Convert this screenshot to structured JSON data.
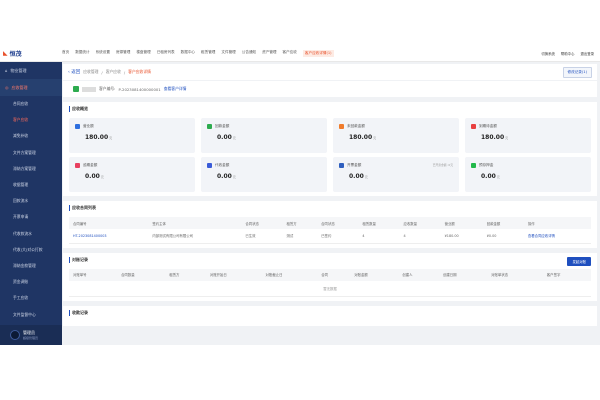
{
  "brand": {
    "logo": "恒茂"
  },
  "topnav": {
    "items": [
      "首页",
      "数据统计",
      "系统设置",
      "房源管理",
      "楼盘管理",
      "已租房列表",
      "数据中心",
      "租赁管理",
      "文件管理",
      "公告通知",
      "资产管理",
      "客户应收"
    ],
    "active": "客户应收详情(1)",
    "right": [
      "切换系统",
      "帮助中心",
      "退出登录"
    ]
  },
  "sidebar": {
    "group1": "物业管理",
    "group2": "应收管理",
    "items": [
      "合同应收",
      "客户应收",
      "减免补收",
      "文件方案管理",
      "滞纳方案管理",
      "收据管理",
      "回款流水",
      "开票申请",
      "代收款流水",
      "代收(大)对公打款",
      "滞纳金款管理",
      "资金调账",
      "手工应收",
      "文件监督中心"
    ],
    "active_index": 1,
    "user": {
      "name": "管理员",
      "role": "超级管理员"
    }
  },
  "breadcrumb": {
    "back": "返回",
    "items": [
      "应收管理",
      "客户应收"
    ],
    "current": "客户应收详情",
    "history_button": "修改记录(1)"
  },
  "customer": {
    "label": "客户编号:",
    "number": "P-2023081400000001",
    "detail_link": "查看客户详情"
  },
  "overview": {
    "title": "应收概览",
    "cards": [
      {
        "label": "营业额",
        "value": "180.00",
        "unit": "元",
        "color": "#2f6fdf"
      },
      {
        "label": "回款金额",
        "value": "0.00",
        "unit": "元",
        "color": "#2dab4f"
      },
      {
        "label": "未回款金额",
        "value": "180.00",
        "unit": "元",
        "color": "#f07c2c"
      },
      {
        "label": "到期待金额",
        "value": "180.00",
        "unit": "元",
        "color": "#e84040"
      },
      {
        "label": "逾期金额",
        "value": "0.00",
        "unit": "元",
        "color": "#e84060"
      },
      {
        "label": "代收金额",
        "value": "0.00",
        "unit": "元",
        "color": "#3a5bd8"
      },
      {
        "label": "开票金额",
        "value": "0.00",
        "unit": "元",
        "color": "#2f5fbf",
        "note": "已开票金额: 0元"
      },
      {
        "label": "预存押金",
        "value": "0.00",
        "unit": "元",
        "color": "#22b84a"
      }
    ]
  },
  "contracts": {
    "title": "应收合同列表",
    "columns": [
      "合同编号",
      "签约主体",
      "合同状态",
      "租赁方",
      "合同状态",
      "租赁数量",
      "应收数量",
      "营业额",
      "回款金额",
      "操作"
    ],
    "rows": [
      [
        "HT-2023081400003",
        "内部测试有限公司有限公司",
        "已生效",
        "测试",
        "已签约",
        "4",
        "4",
        "¥180.00",
        "¥0.00",
        "查看合同应收详情"
      ]
    ]
  },
  "reconcile": {
    "title": "对账记录",
    "button": "发起对账",
    "columns": [
      "对账单号",
      "合同数量",
      "租赁方",
      "对账开始日",
      "对账截止日",
      "合同",
      "对账金额",
      "创建人",
      "创建日期",
      "对账单状态",
      "客户签字"
    ],
    "empty": "暂无数据"
  },
  "payments": {
    "title": "收款记录"
  }
}
